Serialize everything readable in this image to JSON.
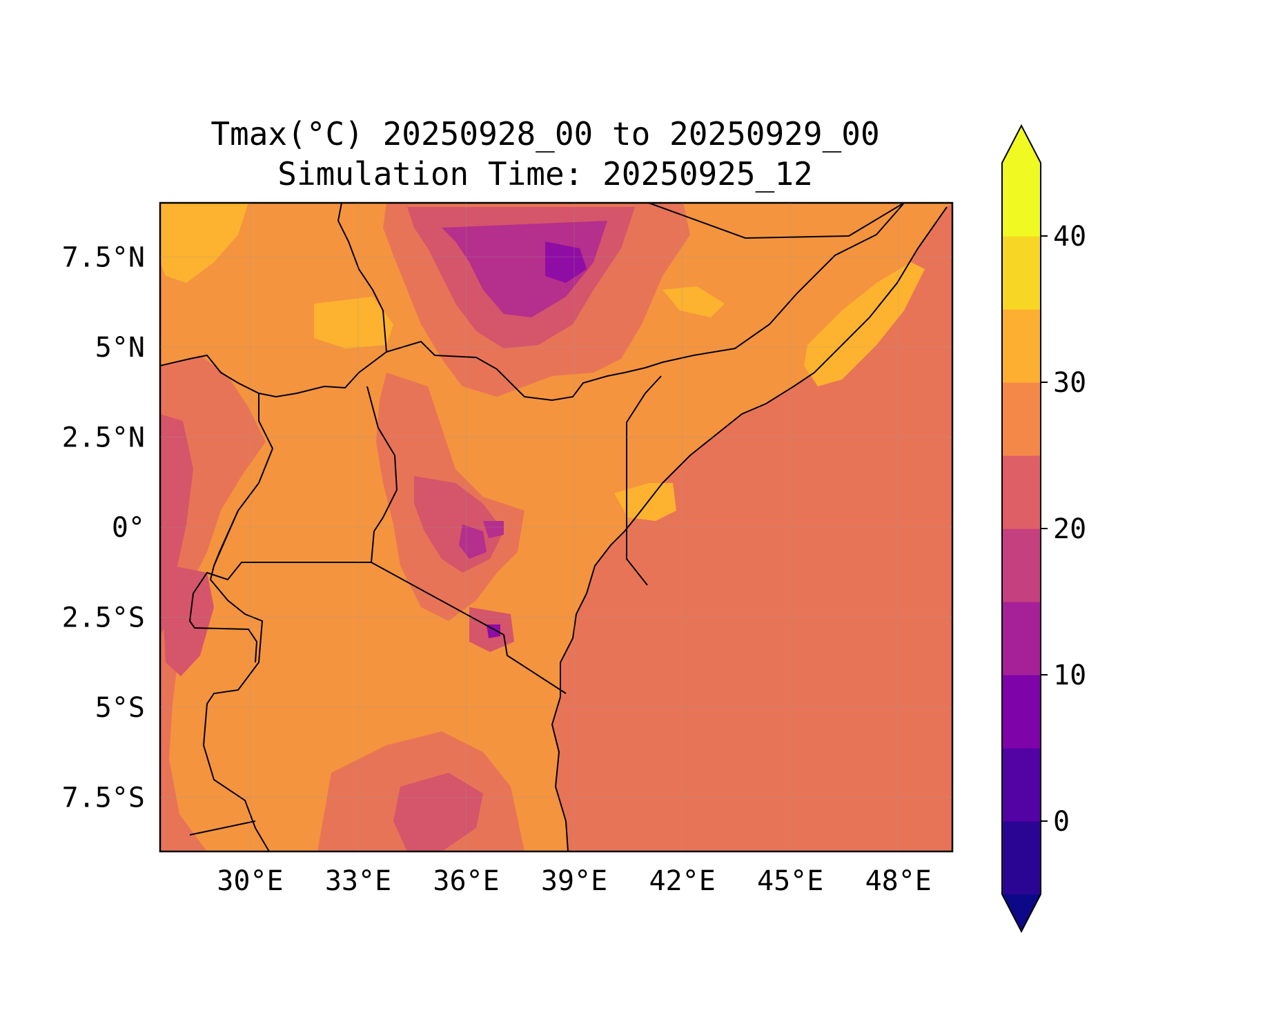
{
  "title_line1": "Tmax(°C) 20250928_00 to 20250929_00",
  "title_line2": "Simulation Time: 20250925_12",
  "map": {
    "lon_range": [
      27.5,
      49.5
    ],
    "lat_range": [
      -9.0,
      9.0
    ],
    "x_ticks": [
      {
        "value": 30,
        "label": "30°E"
      },
      {
        "value": 33,
        "label": "33°E"
      },
      {
        "value": 36,
        "label": "36°E"
      },
      {
        "value": 39,
        "label": "39°E"
      },
      {
        "value": 42,
        "label": "42°E"
      },
      {
        "value": 45,
        "label": "45°E"
      },
      {
        "value": 48,
        "label": "48°E"
      }
    ],
    "y_ticks": [
      {
        "value": 7.5,
        "label": "7.5°N"
      },
      {
        "value": 5,
        "label": "5°N"
      },
      {
        "value": 2.5,
        "label": "2.5°N"
      },
      {
        "value": 0,
        "label": "0°"
      },
      {
        "value": -2.5,
        "label": "2.5°S"
      },
      {
        "value": -5,
        "label": "5°S"
      },
      {
        "value": -7.5,
        "label": "7.5°S"
      }
    ],
    "colors": {
      "land_main": "#f4943f",
      "ocean": "#e87457",
      "cool_1": "#d5556a",
      "cool_2": "#b52f8c",
      "cool_3": "#8f0da4",
      "warm_1": "#fdb32f",
      "border": "#000000"
    }
  },
  "colorbar": {
    "range": [
      -5,
      45
    ],
    "levels": [
      -5,
      0,
      5,
      10,
      15,
      20,
      25,
      30,
      35,
      40,
      45
    ],
    "colors": [
      "#2a0593",
      "#5302a3",
      "#7e03a8",
      "#a62098",
      "#c5407e",
      "#de5f65",
      "#f48849",
      "#fdaf31",
      "#f8d624",
      "#f0f921"
    ],
    "extend_low_color": "#0d0887",
    "extend_high_color": "#f0f921",
    "ticks": [
      {
        "value": 0,
        "label": "0"
      },
      {
        "value": 10,
        "label": "10"
      },
      {
        "value": 20,
        "label": "20"
      },
      {
        "value": 30,
        "label": "30"
      },
      {
        "value": 40,
        "label": "40"
      }
    ]
  }
}
